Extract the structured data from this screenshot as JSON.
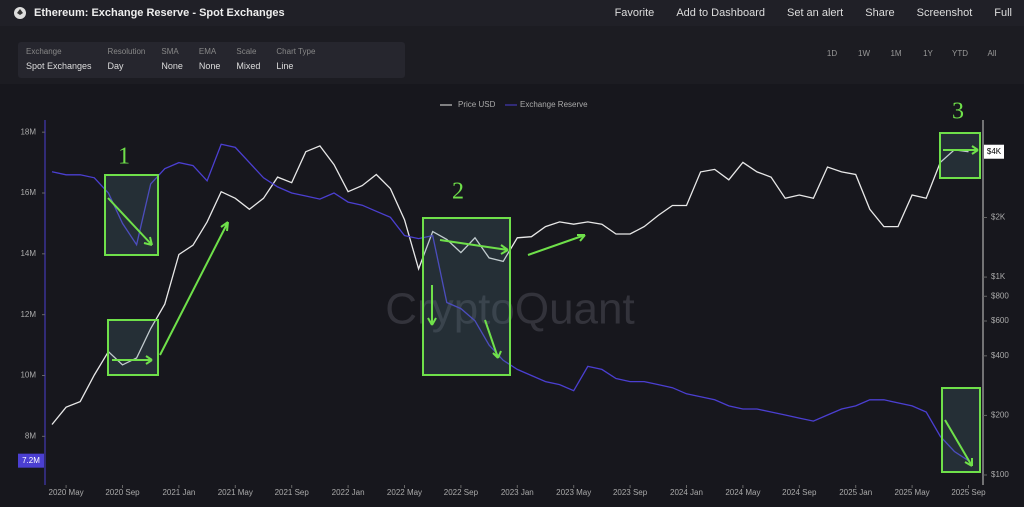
{
  "header": {
    "title": "Ethereum: Exchange Reserve - Spot Exchanges",
    "actions": [
      "Favorite",
      "Add to Dashboard",
      "Set an alert",
      "Share",
      "Screenshot",
      "Full"
    ]
  },
  "controls": [
    {
      "label": "Exchange",
      "value": "Spot Exchanges"
    },
    {
      "label": "Resolution",
      "value": "Day"
    },
    {
      "label": "SMA",
      "value": "None"
    },
    {
      "label": "EMA",
      "value": "None"
    },
    {
      "label": "Scale",
      "value": "Mixed"
    },
    {
      "label": "Chart Type",
      "value": "Line"
    }
  ],
  "ranges": [
    "1D",
    "1W",
    "1M",
    "1Y",
    "YTD",
    "All"
  ],
  "watermark": "CryptoQuant",
  "chart_data": {
    "type": "line",
    "grid": false,
    "y2scale": "log",
    "x": [
      "2020-04",
      "2020-05",
      "2020-06",
      "2020-07",
      "2020-08",
      "2020-09",
      "2020-10",
      "2020-11",
      "2020-12",
      "2021-01",
      "2021-02",
      "2021-03",
      "2021-04",
      "2021-05",
      "2021-06",
      "2021-07",
      "2021-08",
      "2021-09",
      "2021-10",
      "2021-11",
      "2021-12",
      "2022-01",
      "2022-02",
      "2022-03",
      "2022-04",
      "2022-05",
      "2022-06",
      "2022-07",
      "2022-08",
      "2022-09",
      "2022-10",
      "2022-11",
      "2022-12",
      "2023-01",
      "2023-02",
      "2023-03",
      "2023-04",
      "2023-05",
      "2023-06",
      "2023-07",
      "2023-08",
      "2023-09",
      "2023-10",
      "2023-11",
      "2023-12",
      "2024-01",
      "2024-02",
      "2024-03",
      "2024-04",
      "2024-05",
      "2024-06",
      "2024-07",
      "2024-08",
      "2024-09",
      "2024-10",
      "2024-11",
      "2024-12",
      "2025-01",
      "2025-02",
      "2025-03",
      "2025-04",
      "2025-05",
      "2025-06",
      "2025-07",
      "2025-08",
      "2025-09"
    ],
    "series": [
      {
        "name": "Price USD",
        "color": "#e8e8e8",
        "axis": "y2",
        "last_value_label": "$4K",
        "values": [
          180,
          220,
          235,
          320,
          420,
          360,
          390,
          550,
          730,
          1300,
          1450,
          1900,
          2700,
          2500,
          2200,
          2500,
          3200,
          3000,
          4300,
          4600,
          3700,
          2700,
          2900,
          3300,
          2800,
          1950,
          1100,
          1700,
          1550,
          1330,
          1580,
          1250,
          1200,
          1580,
          1600,
          1800,
          1900,
          1850,
          1900,
          1850,
          1650,
          1650,
          1800,
          2050,
          2300,
          2300,
          3400,
          3500,
          3100,
          3800,
          3400,
          3200,
          2500,
          2600,
          2500,
          3600,
          3400,
          3300,
          2200,
          1800,
          1800,
          2600,
          2500,
          3800,
          4400,
          4300
        ]
      },
      {
        "name": "Exchange Reserve",
        "color": "#4b3fd1",
        "last_value_label": "7.2M",
        "values": [
          16700000,
          16600000,
          16600000,
          16500000,
          16000000,
          15000000,
          14300000,
          16300000,
          16800000,
          17000000,
          16900000,
          16400000,
          17600000,
          17500000,
          17000000,
          16500000,
          16200000,
          16000000,
          15900000,
          15800000,
          16000000,
          15700000,
          15600000,
          15400000,
          15200000,
          14600000,
          14500000,
          14600000,
          12400000,
          12200000,
          11800000,
          11000000,
          10500000,
          10200000,
          10000000,
          9800000,
          9700000,
          9500000,
          10300000,
          10200000,
          9900000,
          9800000,
          9800000,
          9700000,
          9600000,
          9400000,
          9300000,
          9200000,
          9000000,
          8900000,
          8900000,
          8800000,
          8700000,
          8600000,
          8500000,
          8700000,
          8900000,
          9000000,
          9200000,
          9200000,
          9100000,
          9000000,
          8800000,
          8000000,
          7500000,
          7200000
        ]
      }
    ],
    "ylim": [
      6400000,
      18400000
    ],
    "yticks": [
      {
        "value": 8000000,
        "label": "8M"
      },
      {
        "value": 10000000,
        "label": "10M"
      },
      {
        "value": 12000000,
        "label": "12M"
      },
      {
        "value": 14000000,
        "label": "14M"
      },
      {
        "value": 16000000,
        "label": "16M"
      },
      {
        "value": 18000000,
        "label": "18M"
      }
    ],
    "y2lim": [
      89,
      6220
    ],
    "y2ticks": [
      {
        "value": 100,
        "label": "$100"
      },
      {
        "value": 200,
        "label": "$200"
      },
      {
        "value": 400,
        "label": "$400"
      },
      {
        "value": 600,
        "label": "$600"
      },
      {
        "value": 800,
        "label": "$800"
      },
      {
        "value": 1000,
        "label": "$1K"
      },
      {
        "value": 2000,
        "label": "$2K"
      }
    ],
    "xticks": [
      {
        "value": "2020-05",
        "label": "2020 May"
      },
      {
        "value": "2020-09",
        "label": "2020 Sep"
      },
      {
        "value": "2021-01",
        "label": "2021 Jan"
      },
      {
        "value": "2021-05",
        "label": "2021 May"
      },
      {
        "value": "2021-09",
        "label": "2021 Sep"
      },
      {
        "value": "2022-01",
        "label": "2022 Jan"
      },
      {
        "value": "2022-05",
        "label": "2022 May"
      },
      {
        "value": "2022-09",
        "label": "2022 Sep"
      },
      {
        "value": "2023-01",
        "label": "2023 Jan"
      },
      {
        "value": "2023-05",
        "label": "2023 May"
      },
      {
        "value": "2023-09",
        "label": "2023 Sep"
      },
      {
        "value": "2024-01",
        "label": "2024 Jan"
      },
      {
        "value": "2024-05",
        "label": "2024 May"
      },
      {
        "value": "2024-09",
        "label": "2024 Sep"
      },
      {
        "value": "2025-01",
        "label": "2025 Jan"
      },
      {
        "value": "2025-05",
        "label": "2025 May"
      },
      {
        "value": "2025-09",
        "label": "2025 Sep"
      }
    ],
    "annotations": [
      {
        "text": "1"
      },
      {
        "text": "2"
      },
      {
        "text": "3"
      }
    ]
  }
}
